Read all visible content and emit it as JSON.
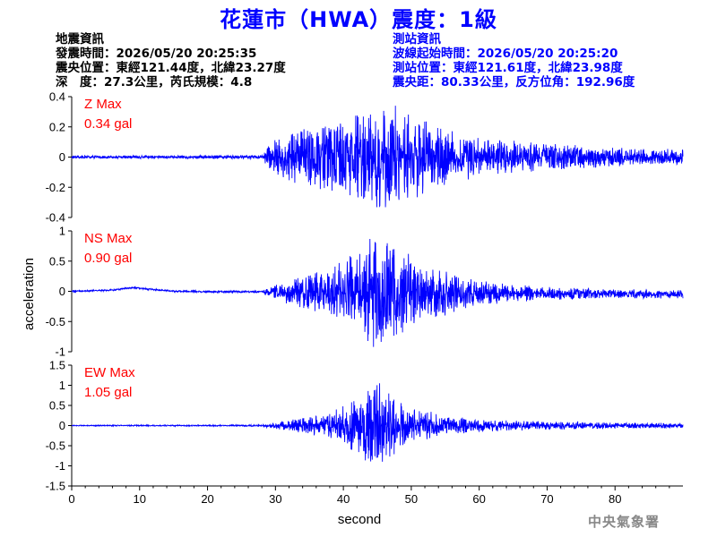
{
  "title": "花蓮市（HWA）震度：1級",
  "event_info": {
    "heading": "地震資訊",
    "origin_time": "發震時間：2026/05/20 20:25:35",
    "epicenter": "震央位置：東經121.44度，北緯23.27度",
    "depth_magnitude": "深　度：27.3公里，芮氏規模：4.8"
  },
  "station_info": {
    "heading": "測站資訊",
    "wave_start": "波線起始時間：2026/05/20 20:25:20",
    "station_location": "測站位置：東經121.61度，北緯23.98度",
    "distance_azimuth": "震央距：80.33公里，反方位角：192.96度"
  },
  "credit": "中央氣象署",
  "colors": {
    "title": "#0000ff",
    "trace": "#0000ff",
    "max_label": "#ff0000",
    "station_info": "#0000ff"
  },
  "chart_data": [
    {
      "type": "line",
      "component": "Z",
      "max_label": "Z Max",
      "max_value": "0.34 gal",
      "ylim": [
        -0.4,
        0.4
      ],
      "yticks": [
        -0.4,
        -0.2,
        0,
        0.2,
        0.4
      ],
      "ytick_labels": [
        "-0.4",
        "-0.2",
        "0",
        "0.2",
        "0.4"
      ],
      "xlim": [
        0,
        90
      ],
      "peak_abs": 0.34,
      "preevent_noise": 0.008,
      "envelope": [
        [
          0,
          0.008
        ],
        [
          28,
          0.01
        ],
        [
          29,
          0.06
        ],
        [
          31,
          0.12
        ],
        [
          35,
          0.16
        ],
        [
          40,
          0.2
        ],
        [
          45,
          0.26
        ],
        [
          47,
          0.3
        ],
        [
          50,
          0.22
        ],
        [
          55,
          0.15
        ],
        [
          60,
          0.1
        ],
        [
          70,
          0.07
        ],
        [
          80,
          0.05
        ],
        [
          90,
          0.04
        ]
      ],
      "baseline": [
        [
          0,
          0
        ],
        [
          90,
          0
        ]
      ]
    },
    {
      "type": "line",
      "component": "NS",
      "max_label": "NS Max",
      "max_value": "0.90 gal",
      "ylim": [
        -1,
        1
      ],
      "yticks": [
        -1,
        -0.5,
        0,
        0.5,
        1
      ],
      "ytick_labels": [
        "-1",
        "-0.5",
        "0",
        "0.5",
        "1"
      ],
      "xlim": [
        0,
        90
      ],
      "peak_abs": 0.9,
      "preevent_noise": 0.01,
      "envelope": [
        [
          0,
          0.01
        ],
        [
          28,
          0.015
        ],
        [
          29,
          0.05
        ],
        [
          32,
          0.15
        ],
        [
          38,
          0.3
        ],
        [
          42,
          0.5
        ],
        [
          45,
          0.75
        ],
        [
          48,
          0.55
        ],
        [
          52,
          0.35
        ],
        [
          56,
          0.25
        ],
        [
          60,
          0.15
        ],
        [
          70,
          0.08
        ],
        [
          80,
          0.06
        ],
        [
          90,
          0.05
        ]
      ],
      "baseline": [
        [
          0,
          0
        ],
        [
          6,
          0.02
        ],
        [
          9,
          0.06
        ],
        [
          12,
          0.03
        ],
        [
          15,
          0
        ],
        [
          28,
          -0.01
        ],
        [
          90,
          -0.05
        ]
      ]
    },
    {
      "type": "line",
      "component": "EW",
      "max_label": "EW Max",
      "max_value": "1.05 gal",
      "ylim": [
        -1.5,
        1.5
      ],
      "yticks": [
        -1.5,
        -1,
        -0.5,
        0,
        0.5,
        1,
        1.5
      ],
      "ytick_labels": [
        "-1.5",
        "-1",
        "-0.5",
        "0",
        "0.5",
        "1",
        "1.5"
      ],
      "xlim": [
        0,
        90
      ],
      "peak_abs": 1.05,
      "preevent_noise": 0.01,
      "envelope": [
        [
          0,
          0.01
        ],
        [
          28,
          0.015
        ],
        [
          29,
          0.05
        ],
        [
          32,
          0.1
        ],
        [
          38,
          0.25
        ],
        [
          42,
          0.55
        ],
        [
          45,
          0.85
        ],
        [
          47,
          0.6
        ],
        [
          50,
          0.35
        ],
        [
          55,
          0.2
        ],
        [
          60,
          0.12
        ],
        [
          70,
          0.08
        ],
        [
          80,
          0.06
        ],
        [
          90,
          0.05
        ]
      ],
      "baseline": [
        [
          0,
          0
        ],
        [
          90,
          0
        ]
      ]
    }
  ],
  "axes": {
    "xlabel": "second",
    "ylabel": "acceleration",
    "xticks": [
      0,
      10,
      20,
      30,
      40,
      50,
      60,
      70,
      80
    ],
    "xtick_labels": [
      "0",
      "10",
      "20",
      "30",
      "40",
      "50",
      "60",
      "70",
      "80"
    ]
  }
}
